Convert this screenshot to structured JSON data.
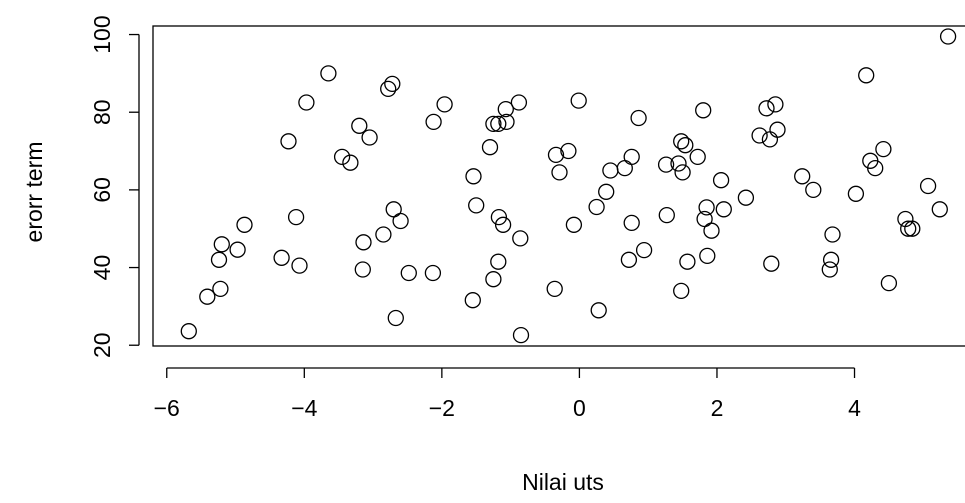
{
  "chart_data": {
    "type": "scatter",
    "title": "",
    "xlabel": "Nilai uts",
    "ylabel": "erorr term",
    "xlim": [
      -6.2,
      5.65
    ],
    "ylim": [
      19.8,
      102.2
    ],
    "xticks": [
      -6,
      -4,
      -2,
      0,
      2,
      4
    ],
    "xtick_labels": [
      "−6",
      "−4",
      "−2",
      "0",
      "2",
      "4"
    ],
    "yticks": [
      20,
      40,
      60,
      80,
      100
    ],
    "ytick_labels": [
      "20",
      "40",
      "60",
      "80",
      "100"
    ],
    "grid": false,
    "marker": "open-circle",
    "points": [
      [
        -5.68,
        23.6
      ],
      [
        -5.41,
        32.5
      ],
      [
        -5.22,
        34.5
      ],
      [
        -5.24,
        42.0
      ],
      [
        -5.2,
        46.0
      ],
      [
        -4.97,
        44.6
      ],
      [
        -4.87,
        51.0
      ],
      [
        -4.33,
        42.5
      ],
      [
        -4.23,
        72.5
      ],
      [
        -4.12,
        53.0
      ],
      [
        -4.07,
        40.5
      ],
      [
        -3.97,
        82.5
      ],
      [
        -3.65,
        90.0
      ],
      [
        -3.45,
        68.5
      ],
      [
        -3.33,
        67.0
      ],
      [
        -3.2,
        76.5
      ],
      [
        -3.15,
        39.5
      ],
      [
        -3.14,
        46.5
      ],
      [
        -3.05,
        73.5
      ],
      [
        -2.85,
        48.5
      ],
      [
        -2.78,
        86.0
      ],
      [
        -2.72,
        87.3
      ],
      [
        -2.7,
        55.0
      ],
      [
        -2.67,
        27.0
      ],
      [
        -2.6,
        52.0
      ],
      [
        -2.48,
        38.6
      ],
      [
        -2.12,
        77.5
      ],
      [
        -2.13,
        38.6
      ],
      [
        -1.96,
        82.0
      ],
      [
        -1.55,
        31.6
      ],
      [
        -1.54,
        63.5
      ],
      [
        -1.5,
        56.0
      ],
      [
        -1.3,
        71.0
      ],
      [
        -1.25,
        77.0
      ],
      [
        -1.25,
        37.0
      ],
      [
        -1.18,
        77.0
      ],
      [
        -1.18,
        41.5
      ],
      [
        -1.17,
        53.0
      ],
      [
        -1.11,
        51.0
      ],
      [
        -1.07,
        80.8
      ],
      [
        -1.06,
        77.5
      ],
      [
        -0.88,
        82.5
      ],
      [
        -0.86,
        47.5
      ],
      [
        -0.85,
        22.6
      ],
      [
        -0.36,
        34.5
      ],
      [
        -0.34,
        69.0
      ],
      [
        -0.29,
        64.5
      ],
      [
        -0.16,
        70.0
      ],
      [
        -0.08,
        51.0
      ],
      [
        -0.01,
        83.0
      ],
      [
        0.25,
        55.6
      ],
      [
        0.28,
        29.0
      ],
      [
        0.39,
        59.5
      ],
      [
        0.45,
        65.0
      ],
      [
        0.66,
        65.6
      ],
      [
        0.72,
        42.0
      ],
      [
        0.76,
        68.5
      ],
      [
        0.76,
        51.5
      ],
      [
        0.86,
        78.5
      ],
      [
        0.94,
        44.5
      ],
      [
        1.26,
        66.5
      ],
      [
        1.27,
        53.5
      ],
      [
        1.44,
        66.8
      ],
      [
        1.48,
        72.5
      ],
      [
        1.48,
        34.0
      ],
      [
        1.5,
        64.5
      ],
      [
        1.54,
        71.5
      ],
      [
        1.57,
        41.5
      ],
      [
        1.72,
        68.5
      ],
      [
        1.8,
        80.5
      ],
      [
        1.82,
        52.5
      ],
      [
        1.85,
        55.5
      ],
      [
        1.86,
        43.0
      ],
      [
        1.92,
        49.5
      ],
      [
        2.06,
        62.5
      ],
      [
        2.1,
        55.0
      ],
      [
        2.42,
        58.0
      ],
      [
        2.62,
        74.0
      ],
      [
        2.72,
        81.0
      ],
      [
        2.77,
        73.0
      ],
      [
        2.79,
        41.0
      ],
      [
        2.85,
        82.0
      ],
      [
        2.88,
        75.5
      ],
      [
        3.24,
        63.5
      ],
      [
        3.4,
        60.0
      ],
      [
        3.64,
        39.5
      ],
      [
        3.66,
        42.0
      ],
      [
        3.68,
        48.5
      ],
      [
        4.02,
        59.0
      ],
      [
        4.17,
        89.5
      ],
      [
        4.23,
        67.5
      ],
      [
        4.3,
        65.6
      ],
      [
        4.42,
        70.5
      ],
      [
        4.5,
        36.0
      ],
      [
        4.74,
        52.5
      ],
      [
        4.78,
        50.0
      ],
      [
        4.84,
        50.0
      ],
      [
        5.07,
        61.0
      ],
      [
        5.24,
        55.0
      ],
      [
        5.36,
        99.5
      ]
    ]
  }
}
